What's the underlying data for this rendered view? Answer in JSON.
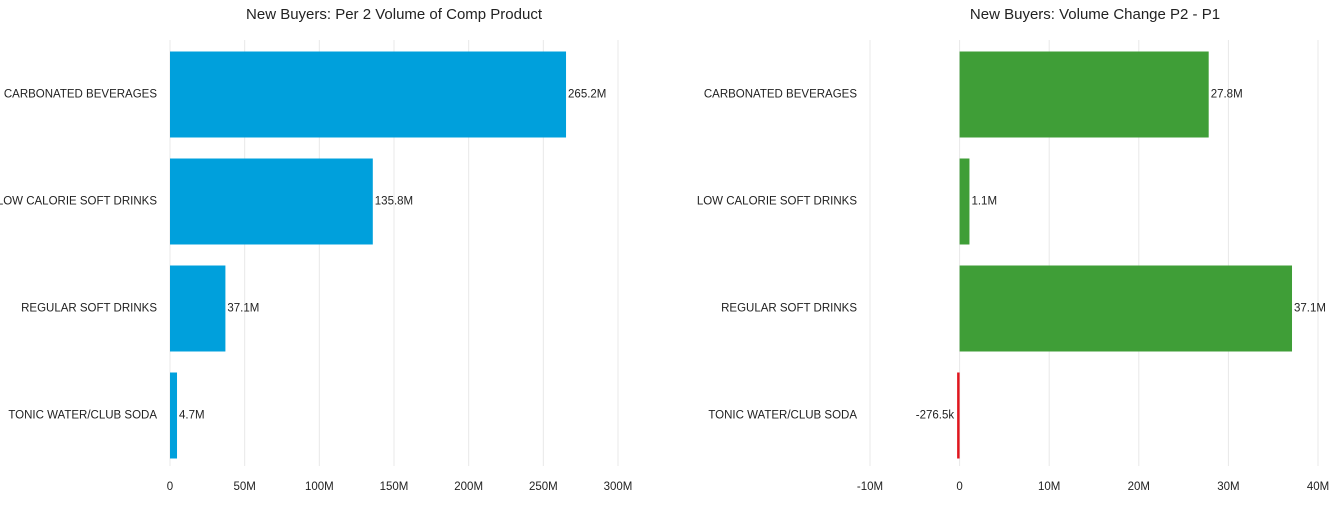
{
  "chart_data": [
    {
      "type": "bar",
      "orientation": "horizontal",
      "title": "New Buyers: Per 2 Volume of Comp Product",
      "categories": [
        "CARBONATED BEVERAGES",
        "LOW CALORIE SOFT DRINKS",
        "REGULAR SOFT DRINKS",
        "TONIC WATER/CLUB SODA"
      ],
      "values": [
        265200000,
        135800000,
        37100000,
        4700000
      ],
      "value_labels": [
        "265.2M",
        "135.8M",
        "37.1M",
        "4.7M"
      ],
      "xlim": [
        0,
        300000000
      ],
      "ticks": [
        0,
        50000000,
        100000000,
        150000000,
        200000000,
        250000000,
        300000000
      ],
      "tick_labels": [
        "0",
        "50M",
        "100M",
        "150M",
        "200M",
        "250M",
        "300M"
      ],
      "grid": true,
      "colors": {
        "positive": "#00a0dc",
        "negative": "#00a0dc"
      }
    },
    {
      "type": "bar",
      "orientation": "horizontal",
      "title": "New Buyers: Volume Change P2 - P1",
      "categories": [
        "CARBONATED BEVERAGES",
        "LOW CALORIE SOFT DRINKS",
        "REGULAR SOFT DRINKS",
        "TONIC WATER/CLUB SODA"
      ],
      "values": [
        27800000,
        1100000,
        37100000,
        -276500
      ],
      "value_labels": [
        "27.8M",
        "1.1M",
        "37.1M",
        "-276.5k"
      ],
      "xlim": [
        -10000000,
        40000000
      ],
      "ticks": [
        -10000000,
        0,
        10000000,
        20000000,
        30000000,
        40000000
      ],
      "tick_labels": [
        "-10M",
        "0",
        "10M",
        "20M",
        "30M",
        "40M"
      ],
      "grid": true,
      "colors": {
        "positive": "#3f9e37",
        "negative": "#e0161e"
      }
    }
  ]
}
